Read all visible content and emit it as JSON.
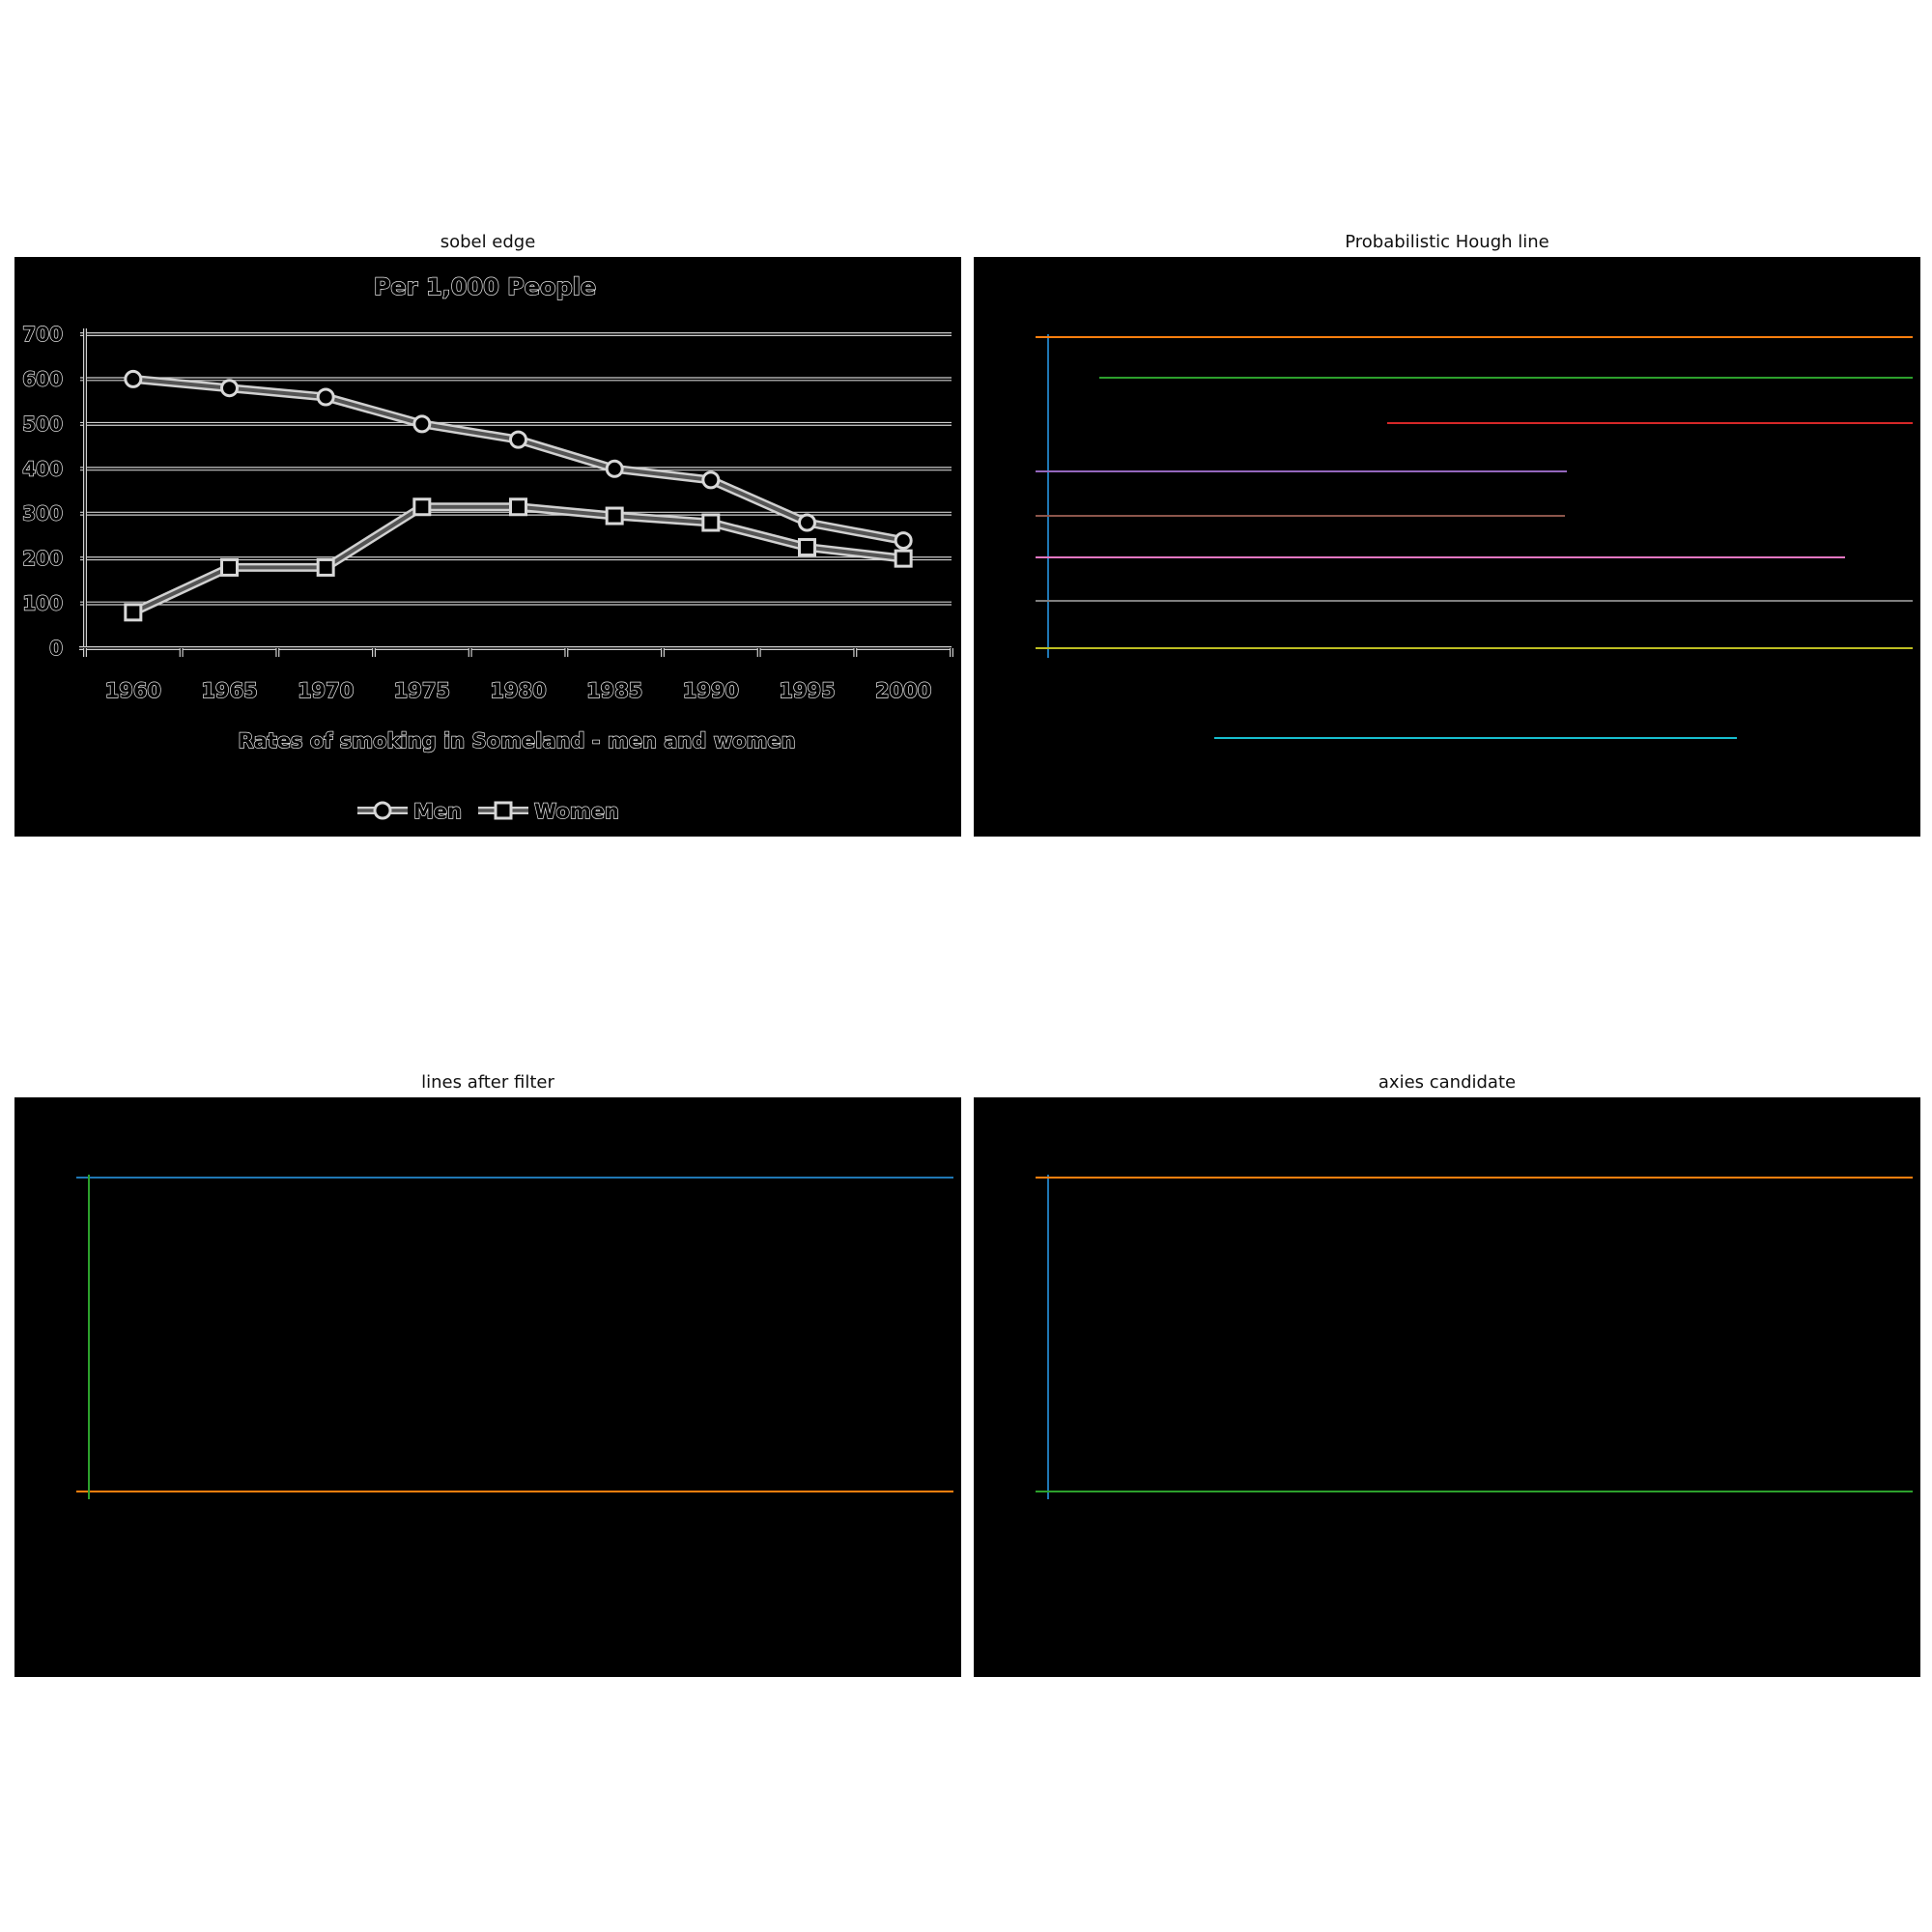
{
  "panels": {
    "sobel": {
      "title": "sobel edge"
    },
    "hough": {
      "title": "Probabilistic Hough line"
    },
    "filtered": {
      "title": "lines after filter"
    },
    "axes": {
      "title": "axies candidate"
    }
  },
  "chart_data": {
    "type": "line",
    "title": "Per 1,000 People",
    "xlabel": "Rates of smoking in Someland - men and women",
    "ylabel": "",
    "categories": [
      "1960",
      "1965",
      "1970",
      "1975",
      "1980",
      "1985",
      "1990",
      "1995",
      "2000"
    ],
    "yticks": [
      "0",
      "100",
      "200",
      "300",
      "400",
      "500",
      "600",
      "700"
    ],
    "ylim": [
      0,
      700
    ],
    "grid": true,
    "legend_position": "bottom",
    "series": [
      {
        "name": "Men",
        "marker": "circle",
        "values": [
          600,
          580,
          560,
          500,
          465,
          400,
          375,
          280,
          240
        ]
      },
      {
        "name": "Women",
        "marker": "square",
        "values": [
          80,
          180,
          180,
          315,
          315,
          295,
          280,
          225,
          200
        ]
      }
    ]
  },
  "colors": {
    "blue": "#1f77b4",
    "orange": "#ff7f0e",
    "green": "#2ca02c",
    "red": "#d62728",
    "purple": "#9467bd",
    "brown": "#8c564b",
    "pink": "#e377c2",
    "gray": "#7f7f7f",
    "olive": "#bcbd22",
    "cyan": "#17becf"
  }
}
